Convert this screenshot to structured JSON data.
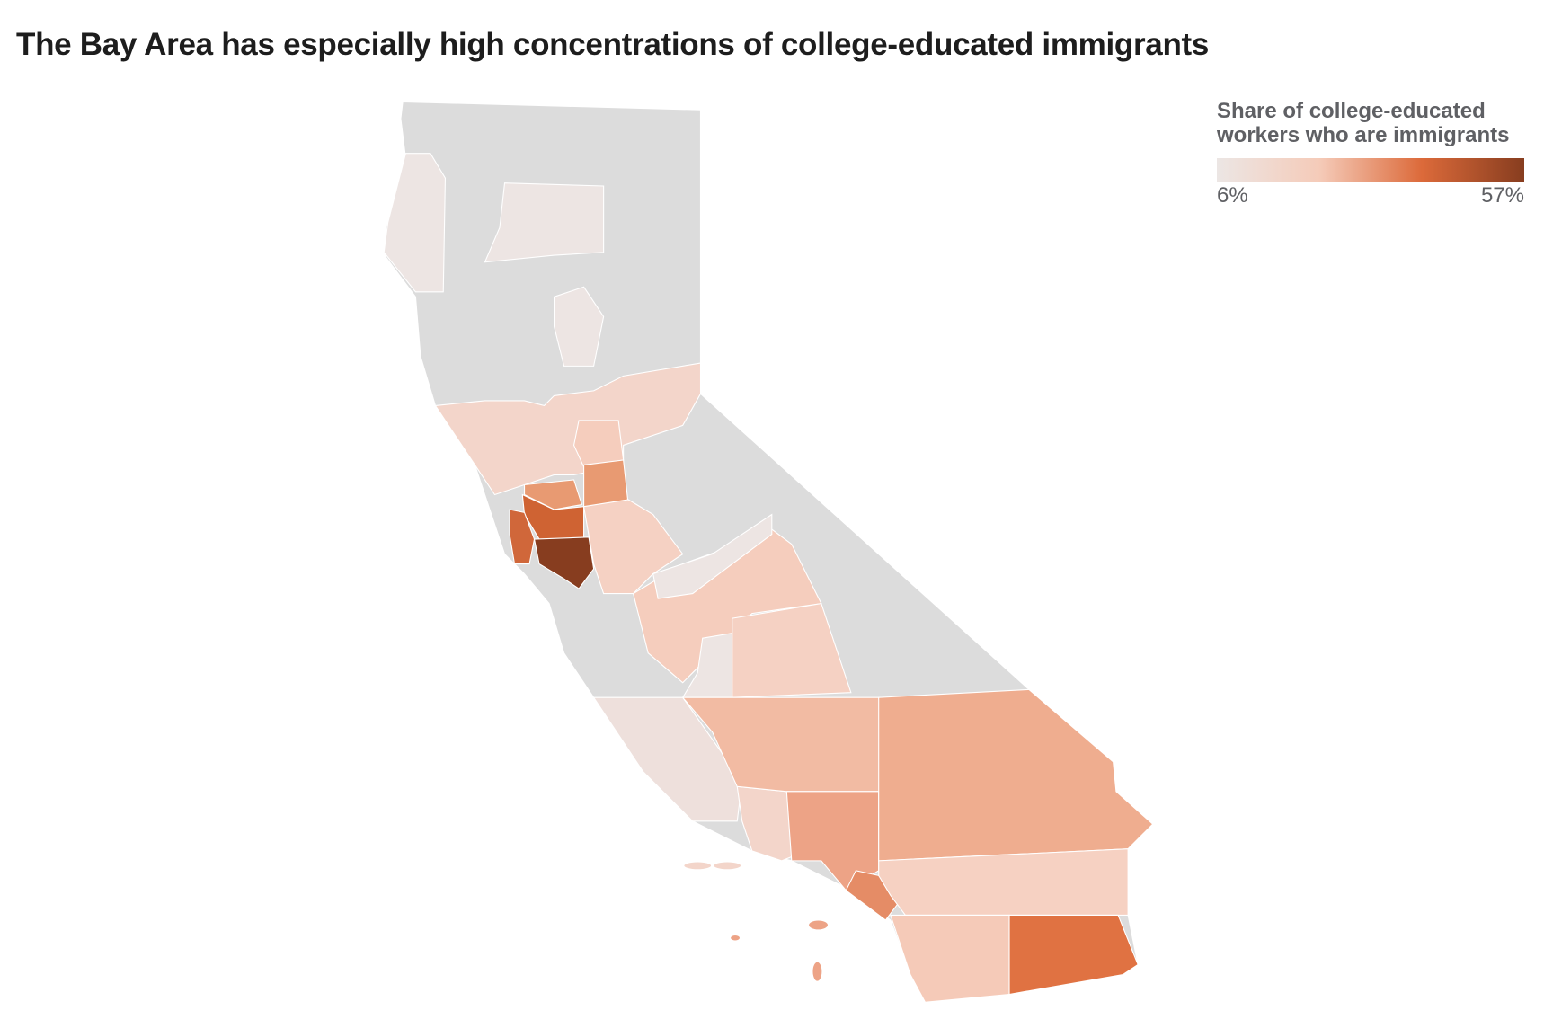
{
  "title": "The Bay Area has especially high concentrations of college-educated immigrants",
  "legend": {
    "title": "Share of college-educated workers who are immigrants",
    "min_label": "6%",
    "max_label": "57%",
    "min_value": 6,
    "max_value": 57,
    "gradient": [
      "#ece6e4",
      "#f5cbb9",
      "#dc6a3a",
      "#873d1f"
    ]
  },
  "colors": {
    "no_data": "#dcdcdc",
    "very_low": "#ede5e3",
    "low": "#f5d3c6",
    "low_mid": "#f3c0a9",
    "mid": "#eda98b",
    "mid_high": "#e58c66",
    "high": "#d0673a",
    "highest": "#873d1f"
  }
}
